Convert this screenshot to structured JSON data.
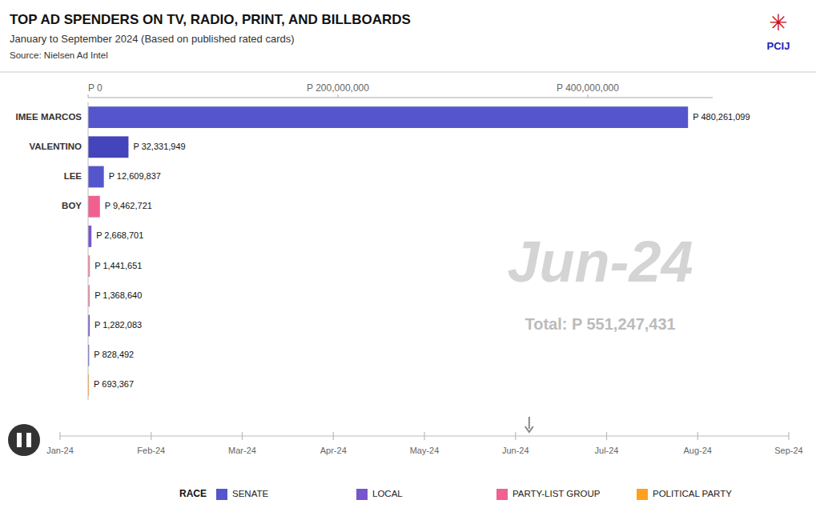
{
  "chart_data": {
    "type": "bar",
    "orientation": "horizontal",
    "title": "TOP AD SPENDERS ON TV, RADIO, PRINT, AND BILLBOARDS",
    "subtitle": "January to September 2024 (Based on published rated cards)",
    "source": "Source: Nielsen Ad Intel",
    "logo_text": "PCIJ",
    "logo_symbol": "✳",
    "categories": [
      "IMEE MARCOS",
      "VALENTINO",
      "LEE",
      "BOY",
      null,
      null,
      null,
      null,
      null,
      null
    ],
    "values": [
      480261099,
      32331949,
      12609837,
      9462721,
      2668701,
      1441651,
      1368640,
      1282083,
      828492,
      693367
    ],
    "value_labels": [
      "P 480,261,099",
      "P 32,331,949",
      "P 12,609,837",
      "P 9,462,721",
      "P 2,668,701",
      "P 1,441,651",
      "P 1,368,640",
      "P 1,282,083",
      "P 828,492",
      "P 693,367"
    ],
    "colors": [
      "#5555cc",
      "#4444bb",
      "#5555cc",
      "#f06090",
      "#7755cc",
      "#f080a0",
      "#f080a0",
      "#7755cc",
      "#5555cc",
      "#ffa020"
    ],
    "data_labels": true,
    "xlim": [
      0,
      500000000
    ],
    "xticks": [
      {
        "value": 0,
        "label": "P 0"
      },
      {
        "value": 200000000,
        "label": "P 200,000,000"
      },
      {
        "value": 400000000,
        "label": "P 400,000,000"
      }
    ],
    "grid": false,
    "watermark_text": "Jun-24",
    "watermark_total": "Total: P 551,247,431",
    "timeline_months": [
      "Jan-24",
      "Feb-24",
      "Mar-24",
      "Apr-24",
      "May-24",
      "Jun-24",
      "Jul-24",
      "Aug-24",
      "Sep-24"
    ],
    "legend_title": "RACE",
    "legend_entries": [
      {
        "label": "SENATE",
        "color": "#5555cc"
      },
      {
        "label": "LOCAL",
        "color": "#7755cc"
      },
      {
        "label": "PARTY-LIST GROUP",
        "color": "#f06090"
      },
      {
        "label": "POLITICAL PARTY",
        "color": "#ffa020"
      }
    ]
  }
}
